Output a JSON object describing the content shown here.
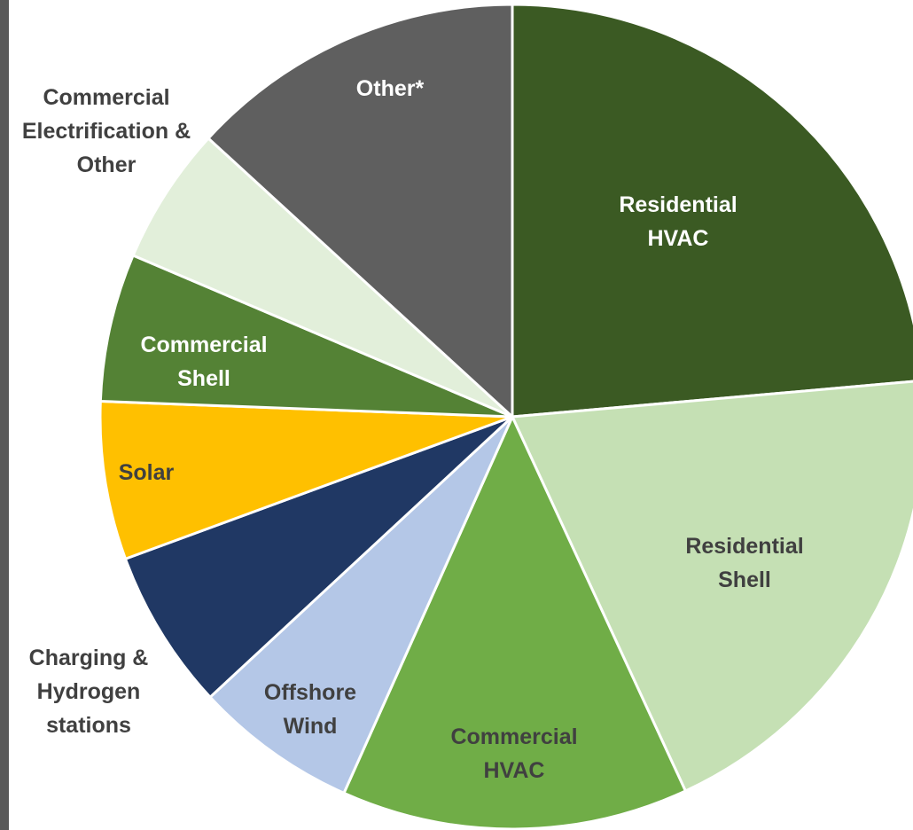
{
  "chart_data": {
    "type": "pie",
    "categories": [
      "Residential HVAC",
      "Residential Shell",
      "Commercial HVAC",
      "Offshore Wind",
      "Charging & Hydrogen stations",
      "Solar",
      "Commercial Shell",
      "Commercial Electrification & Other",
      "Other*"
    ],
    "values": [
      23.6,
      19.5,
      13.6,
      6.4,
      6.3,
      6.2,
      5.8,
      5.4,
      13.2
    ],
    "colors": [
      "#3b5a23",
      "#c5e0b4",
      "#70ad47",
      "#b4c7e7",
      "#203864",
      "#ffc000",
      "#548235",
      "#e2efda",
      "#5f5f5f"
    ]
  }
}
